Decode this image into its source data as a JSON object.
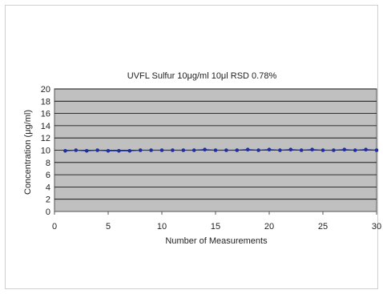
{
  "chart_data": {
    "type": "line",
    "title": "UVFL Sulfur 10μg/ml  10μl    RSD  0.78%",
    "xlabel": "Number of Measurements",
    "ylabel": "Concentration (μg/ml)",
    "xlim": [
      0,
      30
    ],
    "ylim": [
      0,
      20
    ],
    "xticks": [
      0,
      5,
      10,
      15,
      20,
      25,
      30
    ],
    "yticks": [
      0,
      2,
      4,
      6,
      8,
      10,
      12,
      14,
      16,
      18,
      20
    ],
    "grid": true,
    "legend": "none",
    "colors": {
      "plot_bg": "#c0c0c0",
      "series": "#1f2f9c",
      "grid": "#000000"
    },
    "series": [
      {
        "x": [
          1,
          2,
          3,
          4,
          5,
          6,
          7,
          8,
          9,
          10,
          11,
          12,
          13,
          14,
          15,
          16,
          17,
          18,
          19,
          20,
          21,
          22,
          23,
          24,
          25,
          26,
          27,
          28,
          29,
          30
        ],
        "values": [
          9.9,
          10.0,
          9.9,
          10.0,
          9.9,
          9.9,
          9.9,
          10.0,
          10.0,
          10.0,
          10.0,
          10.0,
          10.0,
          10.1,
          10.0,
          10.0,
          10.0,
          10.1,
          10.0,
          10.1,
          10.0,
          10.1,
          10.0,
          10.1,
          10.0,
          10.0,
          10.1,
          10.0,
          10.1,
          10.0
        ]
      }
    ]
  }
}
